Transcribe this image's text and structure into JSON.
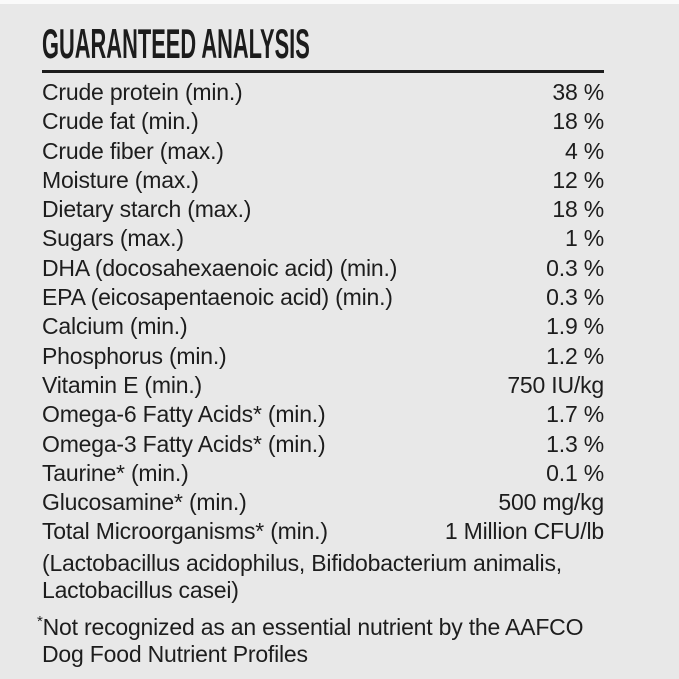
{
  "panel": {
    "title": "GUARANTEED ANALYSIS",
    "rows": [
      {
        "label": "Crude protein (min.)",
        "value": "38 %"
      },
      {
        "label": "Crude fat (min.)",
        "value": "18 %"
      },
      {
        "label": "Crude fiber (max.)",
        "value": "4 %"
      },
      {
        "label": "Moisture (max.)",
        "value": "12 %"
      },
      {
        "label": "Dietary starch (max.)",
        "value": "18 %"
      },
      {
        "label": "Sugars (max.)",
        "value": "1 %"
      },
      {
        "label": "DHA (docosahexaenoic acid) (min.)",
        "value": "0.3 %"
      },
      {
        "label": "EPA (eicosapentaenoic acid) (min.)",
        "value": "0.3 %"
      },
      {
        "label": "Calcium (min.)",
        "value": "1.9 %"
      },
      {
        "label": "Phosphorus (min.)",
        "value": "1.2 %"
      },
      {
        "label": "Vitamin E (min.)",
        "value": "750 IU/kg"
      },
      {
        "label": "Omega-6 Fatty Acids* (min.)",
        "value": "1.7 %"
      },
      {
        "label": "Omega-3 Fatty Acids* (min.)",
        "value": "1.3 %"
      },
      {
        "label": "Taurine* (min.)",
        "value": "0.1 %"
      },
      {
        "label": "Glucosamine* (min.)",
        "value": "500 mg/kg"
      },
      {
        "label": "Total Microorganisms* (min.)",
        "value": "1 Million CFU/lb"
      }
    ],
    "note": "(Lactobacillus acidophilus, Bifidobacterium animalis, Lactobacillus casei)",
    "footnote_marker": "*",
    "footnote": "Not recognized as an essential nutrient by the AAFCO Dog Food Nutrient Profiles",
    "colors": {
      "background": "#e8e8e8",
      "text": "#1d1d1d",
      "divider": "#1d1d1d",
      "top_strip": "#fafafa"
    }
  }
}
